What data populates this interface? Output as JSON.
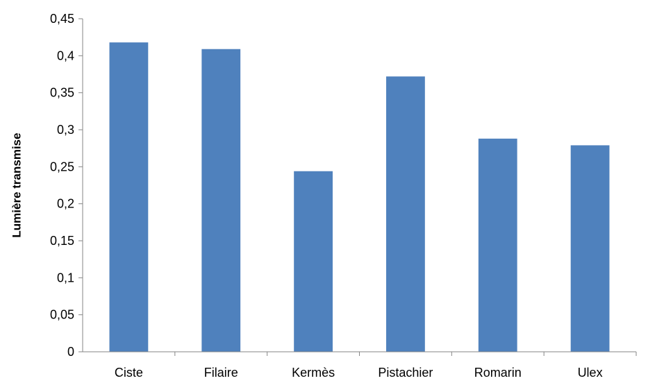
{
  "chart_data": {
    "type": "bar",
    "title": "",
    "xlabel": "",
    "ylabel": "Lumière transmise",
    "categories": [
      "Ciste",
      "Filaire",
      "Kermès",
      "Pistachier",
      "Romarin",
      "Ulex"
    ],
    "values": [
      0.418,
      0.409,
      0.244,
      0.372,
      0.288,
      0.279
    ],
    "ylim": [
      0,
      0.45
    ],
    "yticks": [
      "0",
      "0,05",
      "0,1",
      "0,15",
      "0,2",
      "0,25",
      "0,3",
      "0,35",
      "0,4",
      "0,45"
    ],
    "bar_color": "#4F81BD",
    "grid": false,
    "legend": "none"
  }
}
